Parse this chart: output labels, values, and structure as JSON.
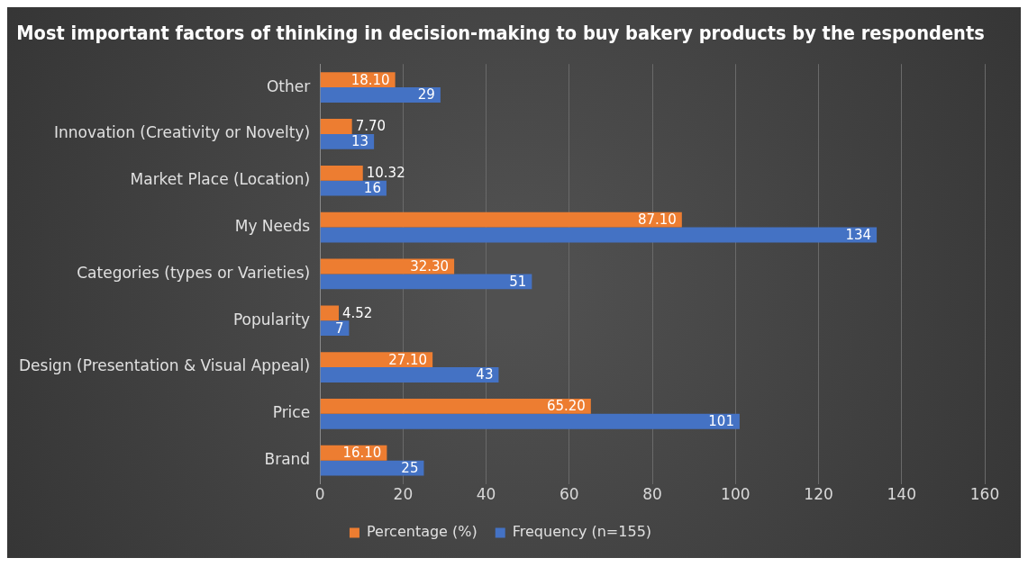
{
  "chart_data": {
    "type": "bar",
    "orientation": "horizontal",
    "title": "Most important factors of thinking in decision-making to buy bakery products by the respondents",
    "categories": [
      "Other",
      "Innovation (Creativity or Novelty)",
      "Market Place (Location)",
      "My Needs",
      "Categories (types or Varieties)",
      "Popularity",
      "Design (Presentation & Visual Appeal)",
      "Price",
      "Brand"
    ],
    "series": [
      {
        "name": "Percentage (%)",
        "color": "#ed7d31",
        "values": [
          18.1,
          7.7,
          10.32,
          87.1,
          32.3,
          4.52,
          27.1,
          65.2,
          16.1
        ],
        "value_labels": [
          "18.10",
          "7.70",
          "10.32",
          "87.10",
          "32.30",
          "4.52",
          "27.10",
          "65.20",
          "16.10"
        ]
      },
      {
        "name": "Frequency (n=155)",
        "color": "#4472c4",
        "values": [
          29,
          13,
          16,
          134,
          51,
          7,
          43,
          101,
          25
        ],
        "value_labels": [
          "29",
          "13",
          "16",
          "134",
          "51",
          "7",
          "43",
          "101",
          "25"
        ]
      }
    ],
    "xlim": [
      0,
      160
    ],
    "xticks": [
      0,
      20,
      40,
      60,
      80,
      100,
      120,
      140,
      160
    ],
    "grid": "x",
    "legend": "bottom"
  }
}
